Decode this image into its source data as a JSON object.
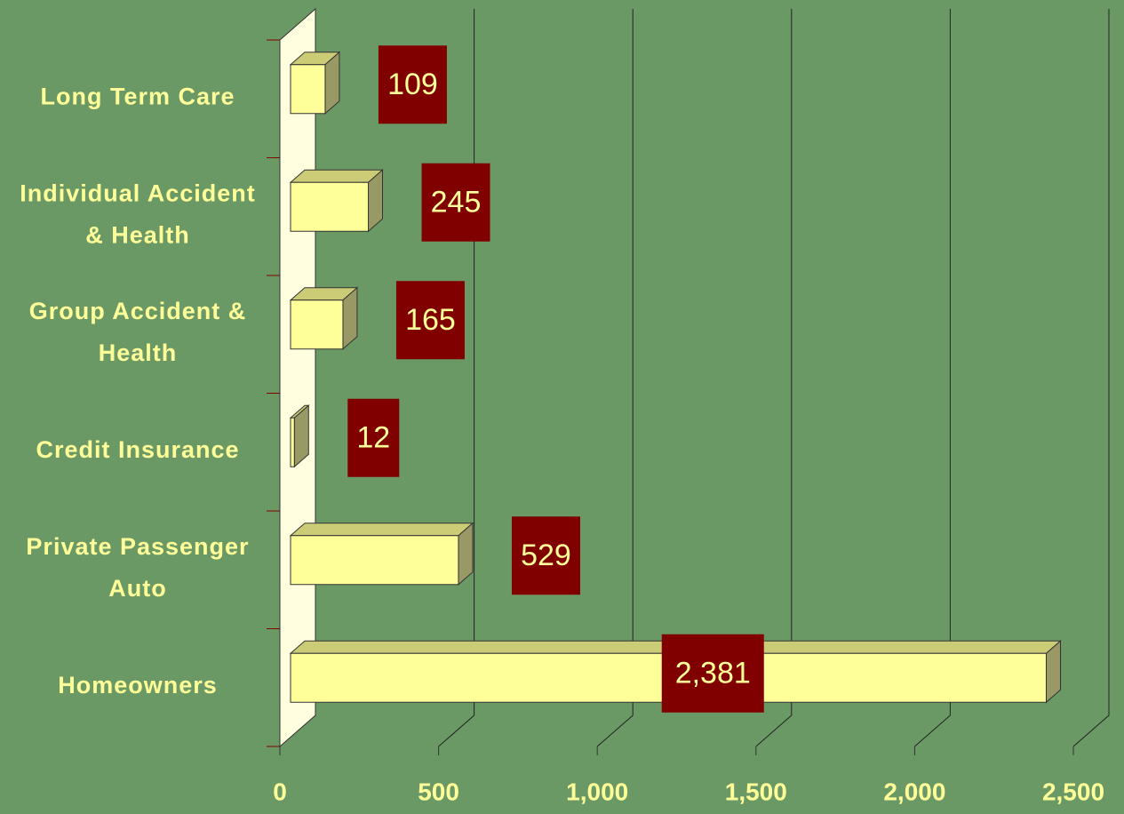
{
  "chart_data": {
    "type": "bar",
    "orientation": "horizontal",
    "categories": [
      "Long Term Care",
      "Individual Accident\n& Health",
      "Group Accident &\nHealth",
      "Credit Insurance",
      "Private Passenger\nAuto",
      "Homeowners"
    ],
    "values": [
      109,
      245,
      165,
      12,
      529,
      2381
    ],
    "value_labels": [
      "109",
      "245",
      "165",
      "12",
      "529",
      "2,381"
    ],
    "color": "#ffff99",
    "label_box_color": "#800000",
    "xlim": [
      0,
      2500
    ],
    "xticks": [
      0,
      500,
      {
        "value": 1000,
        "label": "1,000"
      },
      {
        "value": 1500,
        "label": "1,500"
      },
      {
        "value": 2000,
        "label": "2,000"
      },
      {
        "value": 2500,
        "label": "2,500"
      }
    ],
    "grid": true
  }
}
